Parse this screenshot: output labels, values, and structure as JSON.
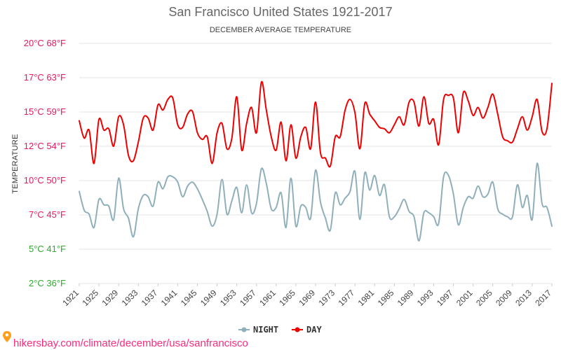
{
  "chart_data": {
    "type": "line",
    "title": "San Francisco United States 1921-2017",
    "subtitle": "DECEMBER AVERAGE TEMPERATURE",
    "ylabel": "TEMPERATURE",
    "ylim": [
      2,
      20
    ],
    "y_tick_labels": [
      {
        "value": 20,
        "label": "20°C 68°F",
        "color": "#e6195b"
      },
      {
        "value": 17,
        "label": "17°C 63°F",
        "color": "#e6195b"
      },
      {
        "value": 15,
        "label": "15°C 59°F",
        "color": "#e6195b"
      },
      {
        "value": 12,
        "label": "12°C 54°F",
        "color": "#e6195b"
      },
      {
        "value": 10,
        "label": "10°C 50°F",
        "color": "#e6195b"
      },
      {
        "value": 7,
        "label": "7°C 45°F",
        "color": "#e6195b"
      },
      {
        "value": 5,
        "label": "5°C 41°F",
        "color": "#2eaa2e"
      },
      {
        "value": 2,
        "label": "2°C 36°F",
        "color": "#2eaa2e"
      }
    ],
    "x_tick_labels": [
      "1921",
      "1925",
      "1929",
      "1933",
      "1937",
      "1941",
      "1945",
      "1949",
      "1953",
      "1957",
      "1961",
      "1965",
      "1969",
      "1973",
      "1977",
      "1981",
      "1985",
      "1989",
      "1993",
      "1997",
      "2001",
      "2005",
      "2009",
      "2013",
      "2017"
    ],
    "x": [
      1921,
      1922,
      1923,
      1924,
      1925,
      1926,
      1927,
      1928,
      1929,
      1930,
      1931,
      1932,
      1933,
      1934,
      1935,
      1936,
      1937,
      1938,
      1939,
      1940,
      1941,
      1942,
      1943,
      1944,
      1945,
      1946,
      1947,
      1948,
      1949,
      1950,
      1951,
      1952,
      1953,
      1954,
      1955,
      1956,
      1957,
      1958,
      1959,
      1960,
      1961,
      1962,
      1963,
      1964,
      1965,
      1966,
      1967,
      1968,
      1969,
      1970,
      1971,
      1972,
      1973,
      1974,
      1975,
      1976,
      1977,
      1978,
      1979,
      1980,
      1981,
      1982,
      1983,
      1984,
      1985,
      1986,
      1987,
      1988,
      1989,
      1990,
      1991,
      1992,
      1993,
      1994,
      1995,
      1996,
      1997,
      1998,
      1999,
      2000,
      2001,
      2002,
      2003,
      2004,
      2005,
      2006,
      2007,
      2008,
      2009,
      2010,
      2011,
      2012,
      2013,
      2014,
      2015,
      2016,
      2017
    ],
    "series": [
      {
        "name": "DAY",
        "color": "#ee0000",
        "values": [
          14.2,
          12.9,
          13.5,
          11.0,
          14.3,
          13.5,
          13.6,
          12.3,
          14.5,
          13.9,
          11.6,
          11.2,
          12.6,
          14.4,
          14.4,
          13.5,
          15.4,
          15.0,
          15.8,
          15.9,
          13.9,
          13.7,
          14.7,
          14.9,
          13.3,
          12.8,
          13.0,
          11.0,
          13.3,
          14.0,
          12.1,
          12.9,
          16.0,
          12.0,
          14.0,
          15.2,
          13.3,
          17.1,
          15.0,
          13.0,
          12.0,
          14.1,
          11.2,
          13.9,
          11.4,
          13.0,
          13.7,
          12.1,
          15.6,
          11.8,
          11.4,
          10.8,
          13.0,
          13.0,
          15.0,
          15.8,
          14.8,
          12.1,
          15.5,
          14.7,
          14.2,
          13.7,
          13.6,
          13.3,
          13.9,
          14.5,
          13.9,
          15.6,
          15.6,
          13.8,
          16.0,
          14.0,
          14.3,
          12.4,
          15.8,
          16.1,
          15.9,
          13.3,
          16.3,
          15.7,
          14.6,
          15.2,
          14.4,
          15.2,
          16.2,
          14.7,
          13.0,
          12.7,
          12.6,
          13.6,
          14.5,
          13.5,
          14.5,
          15.8,
          13.4,
          13.6,
          17.0
        ]
      },
      {
        "name": "NIGHT",
        "color": "#8fafba",
        "values": [
          8.9,
          7.5,
          7.2,
          6.2,
          8.3,
          7.9,
          7.8,
          6.8,
          9.9,
          7.6,
          6.9,
          5.5,
          7.6,
          8.6,
          8.5,
          7.8,
          9.6,
          9.1,
          10.0,
          10.0,
          9.6,
          8.5,
          9.3,
          9.6,
          9.1,
          8.3,
          7.4,
          6.3,
          7.2,
          9.8,
          7.2,
          8.2,
          9.2,
          7.3,
          9.4,
          7.3,
          8.0,
          10.6,
          9.5,
          7.6,
          7.7,
          8.8,
          6.2,
          9.9,
          6.3,
          7.8,
          7.7,
          6.9,
          10.5,
          8.1,
          6.9,
          6.0,
          8.8,
          7.9,
          8.4,
          8.9,
          10.4,
          6.8,
          10.3,
          9.0,
          10.1,
          8.6,
          9.4,
          7.0,
          7.0,
          7.6,
          8.3,
          7.4,
          7.0,
          5.2,
          7.3,
          7.3,
          7.0,
          6.5,
          10.0,
          10.1,
          8.7,
          6.4,
          7.7,
          8.5,
          8.4,
          9.3,
          8.5,
          8.7,
          9.6,
          7.6,
          7.2,
          7.0,
          7.0,
          9.4,
          7.7,
          8.6,
          6.8,
          11.0,
          8.0,
          7.7,
          6.3
        ]
      }
    ],
    "grid": true,
    "legend_position": "bottom-center",
    "legend_order": [
      "NIGHT",
      "DAY"
    ]
  },
  "footer": {
    "url": "hikersbay.com/climate/december/usa/sanfrancisco",
    "icon": "map-pin-icon",
    "color": "#ff2a7f"
  }
}
